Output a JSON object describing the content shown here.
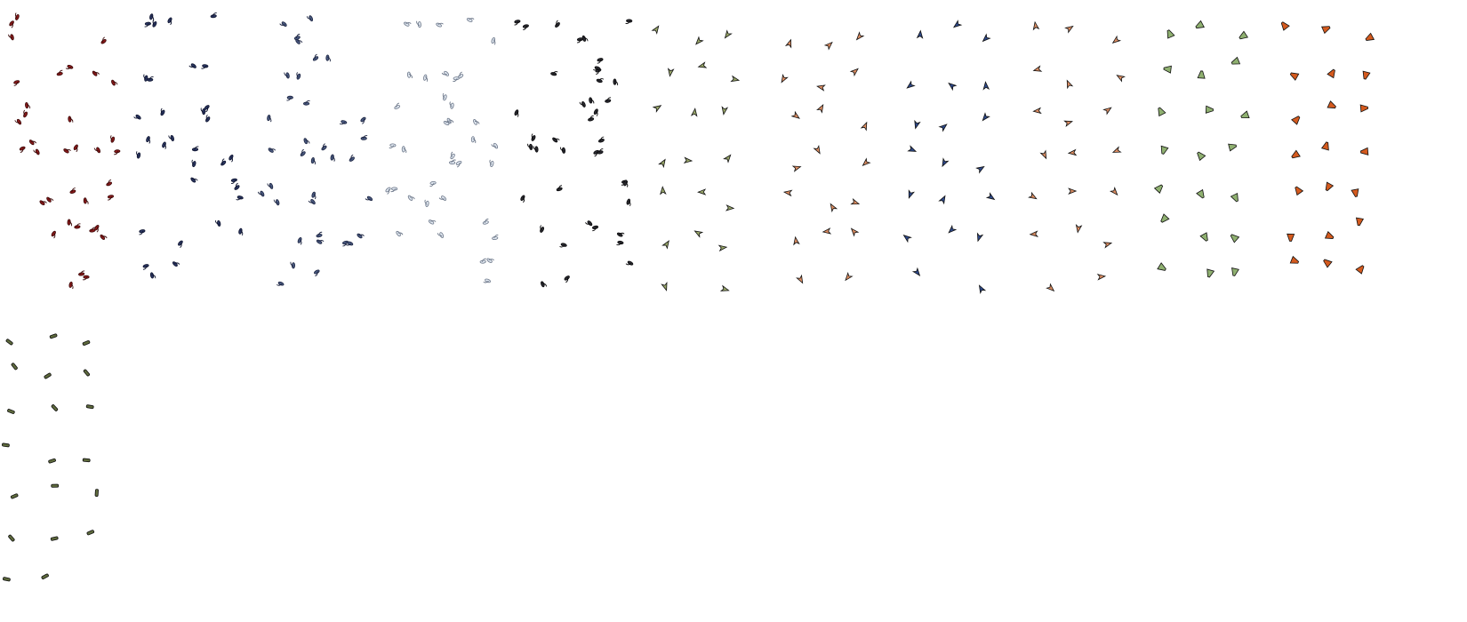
{
  "sprite_sheet": {
    "background": "#ffffff",
    "outline_color": "#111111",
    "groups": [
      {
        "name": "bird-flock-red",
        "kind": "bird",
        "color": "#8b1a1a",
        "accent": "#3a0a0a"
      },
      {
        "name": "bird-flock-navy",
        "kind": "bird",
        "color": "#2a3560",
        "accent": "#0e142e"
      },
      {
        "name": "bird-flock-slate",
        "kind": "bird",
        "color": "#4a5a80",
        "accent": "#1c2440"
      },
      {
        "name": "bird-flock-white",
        "kind": "bird",
        "color": "#dfe6ef",
        "accent": "#6c7789"
      },
      {
        "name": "bird-flock-charcoal",
        "kind": "bird",
        "color": "#2a2a30",
        "accent": "#0a0a0c"
      },
      {
        "name": "arrowhead-olive",
        "kind": "arrow",
        "color": "#9aa86a"
      },
      {
        "name": "arrowhead-salmon",
        "kind": "arrow",
        "color": "#e08f63"
      },
      {
        "name": "arrowhead-blue",
        "kind": "arrow",
        "color": "#2f4a8c"
      },
      {
        "name": "arrowhead-salmon-2",
        "kind": "arrow",
        "color": "#e08f63"
      },
      {
        "name": "arrowhead-green",
        "kind": "cone",
        "color": "#8fb070"
      },
      {
        "name": "arrowhead-orange",
        "kind": "cone",
        "color": "#d45a1e"
      },
      {
        "name": "shell-projectiles",
        "kind": "shell",
        "color": "#5f6b3d"
      }
    ]
  }
}
